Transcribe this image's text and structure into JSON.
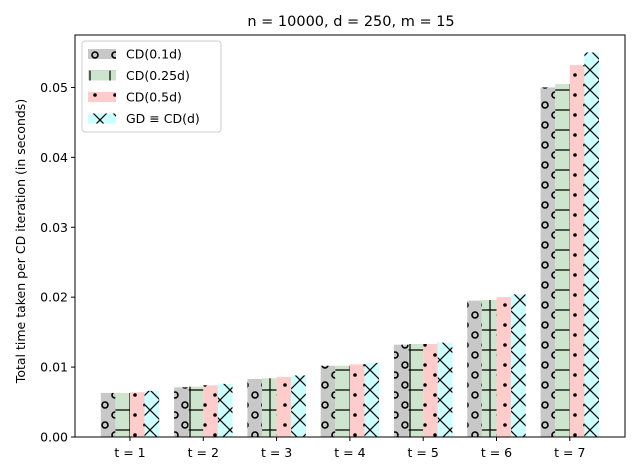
{
  "chart_data": {
    "type": "bar",
    "title": "n = 10000,  d = 250, m = 15",
    "xlabel": "",
    "ylabel": "Total time taken per CD iteration (in seconds)",
    "categories": [
      "t = 1",
      "t = 2",
      "t = 3",
      "t = 4",
      "t = 5",
      "t = 6",
      "t = 7"
    ],
    "ylim": [
      0,
      0.0575
    ],
    "yticks": [
      0.0,
      0.01,
      0.02,
      0.03,
      0.04,
      0.05
    ],
    "ytick_labels": [
      "0.00",
      "0.01",
      "0.02",
      "0.03",
      "0.04",
      "0.05"
    ],
    "legend_position": "top-left",
    "grid": false,
    "series": [
      {
        "name": "CD(0.1d)",
        "color": "#c8c8c8",
        "hatch": "circles",
        "values": [
          0.0063,
          0.0071,
          0.0083,
          0.0102,
          0.0132,
          0.0195,
          0.05
        ]
      },
      {
        "name": "CD(0.25d)",
        "color": "#cce5cc",
        "hatch": "plus",
        "values": [
          0.0063,
          0.0072,
          0.0084,
          0.0102,
          0.0133,
          0.0196,
          0.0505
        ]
      },
      {
        "name": "CD(0.5d)",
        "color": "#ffcccc",
        "hatch": "dots",
        "values": [
          0.0064,
          0.0074,
          0.0086,
          0.0104,
          0.0133,
          0.02,
          0.0532
        ]
      },
      {
        "name": "GD  ≡  CD(d)",
        "color": "#ccffff",
        "hatch": "xcross",
        "values": [
          0.0066,
          0.0076,
          0.0088,
          0.0106,
          0.0135,
          0.0204,
          0.055
        ]
      }
    ]
  }
}
